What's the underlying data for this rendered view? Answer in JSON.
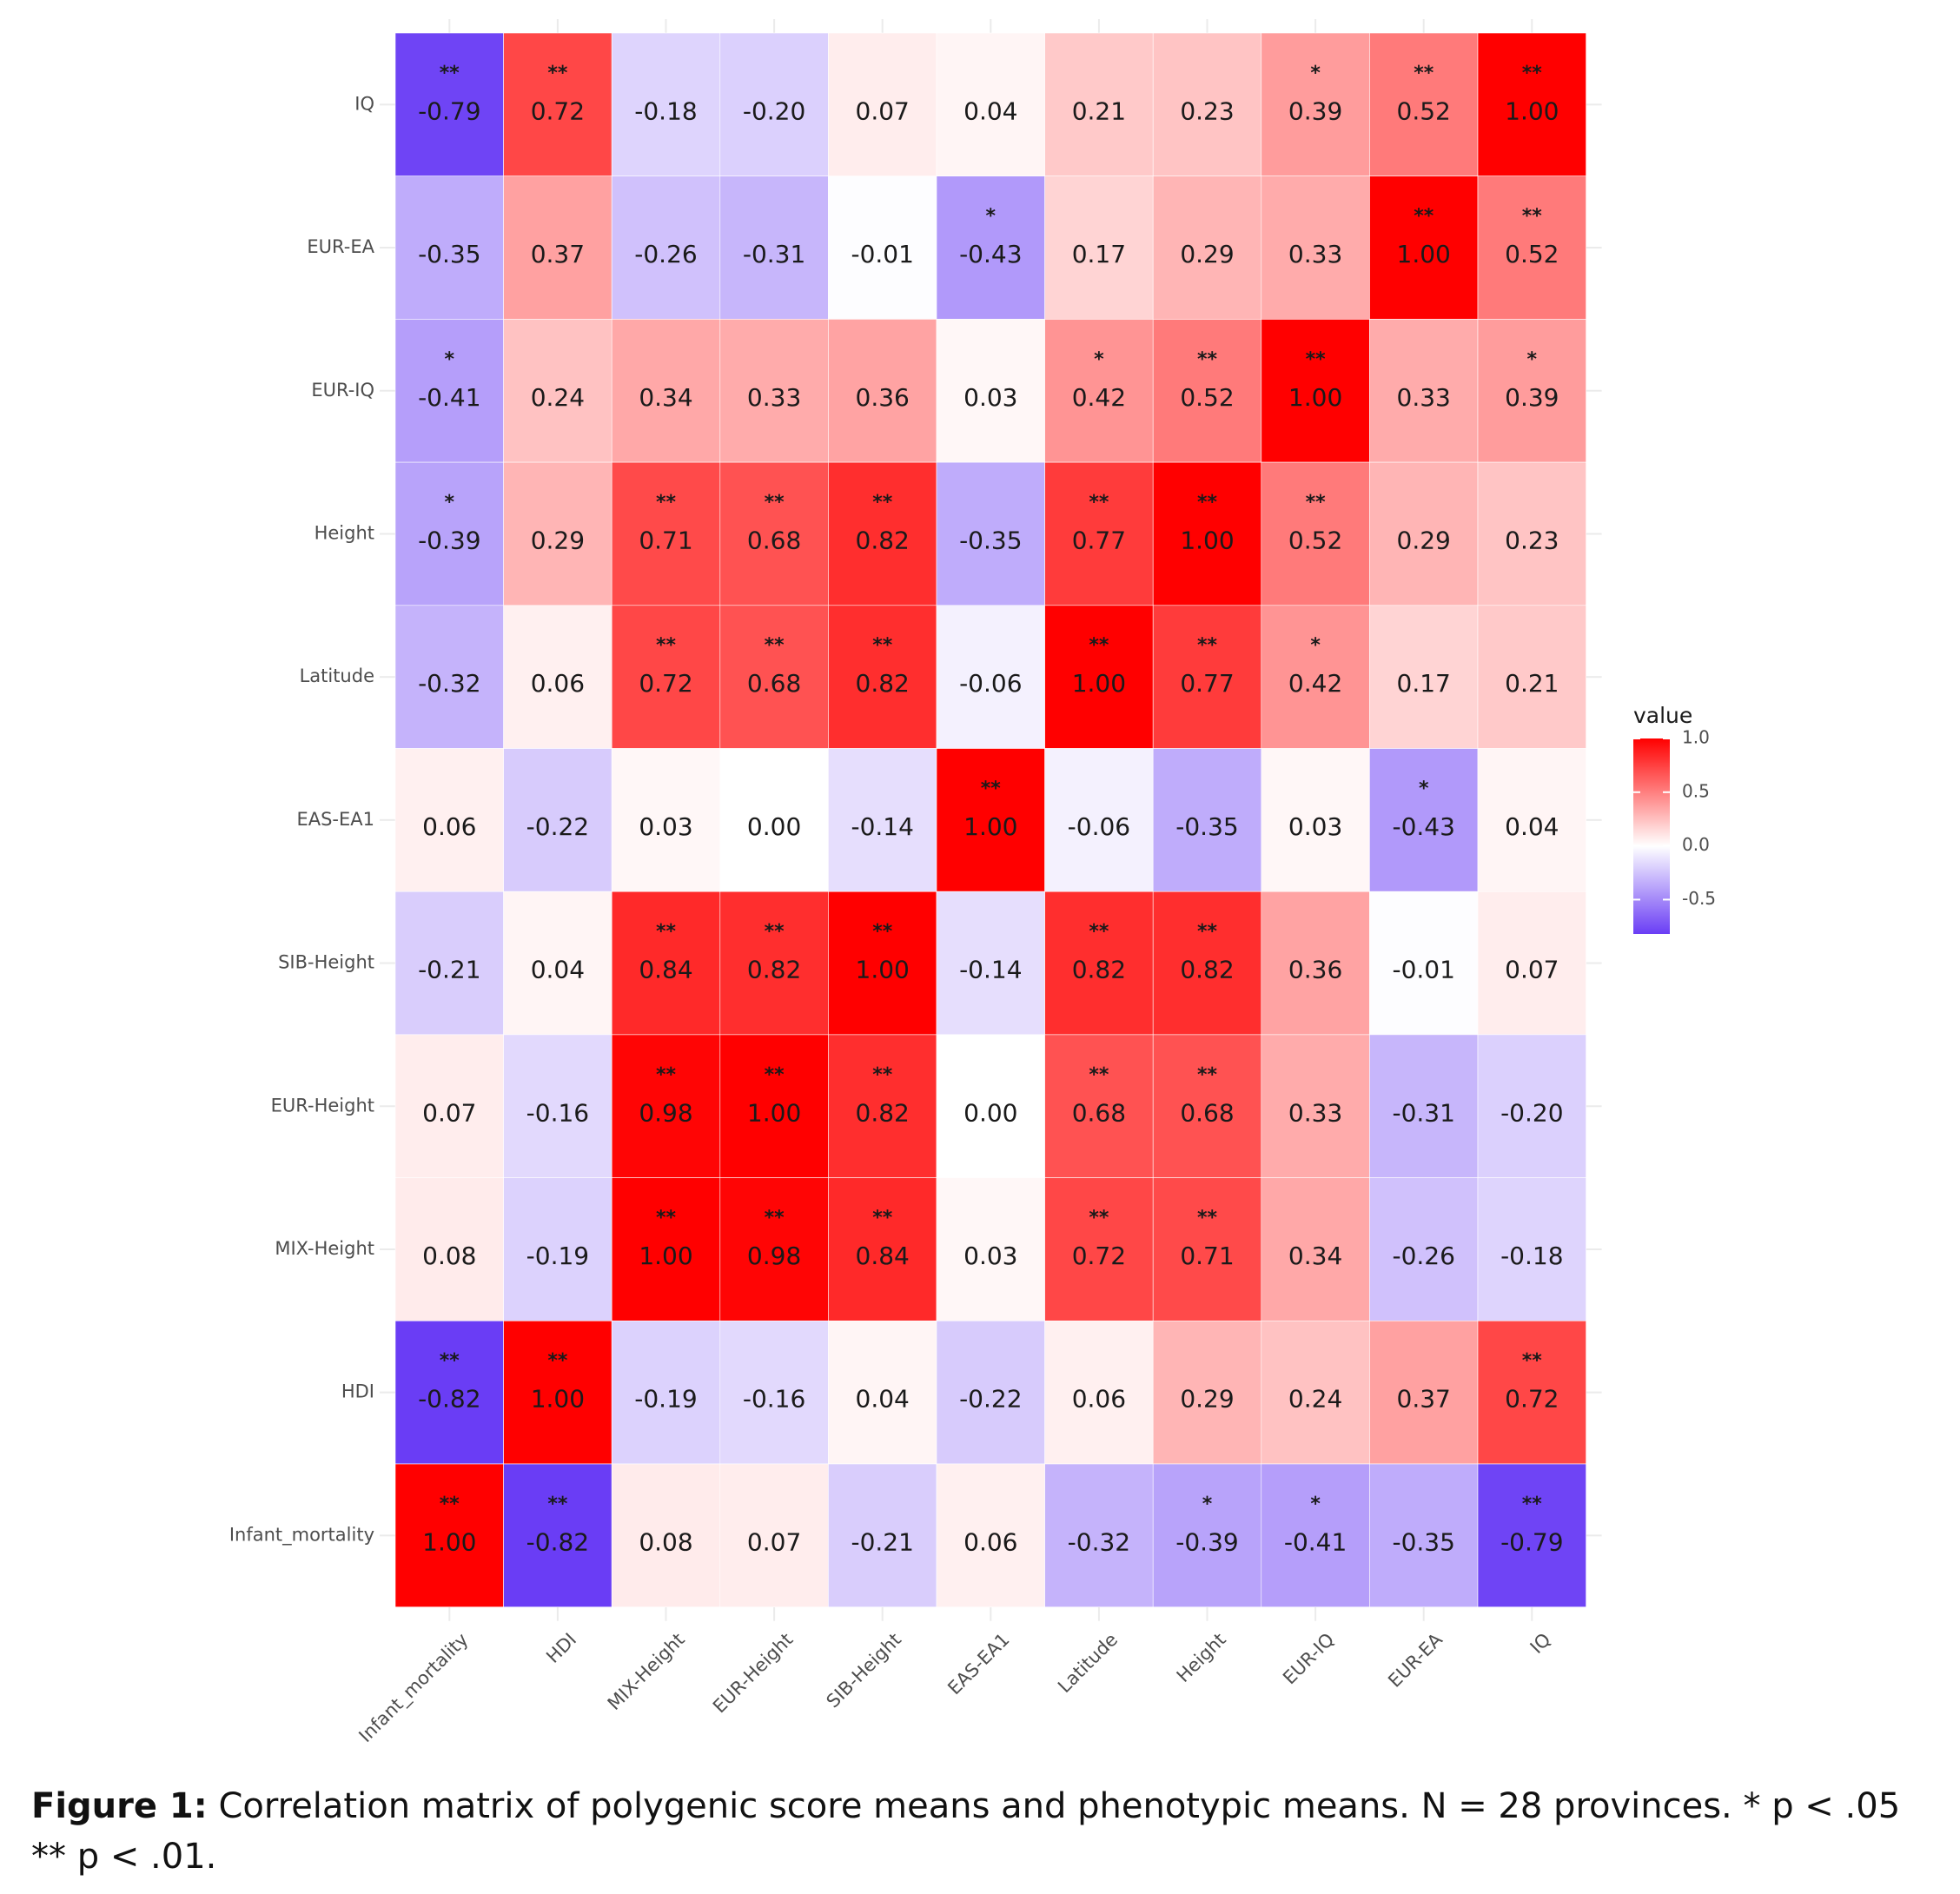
{
  "chart_data": {
    "type": "heatmap",
    "x_categories": [
      "Infant_mortality",
      "HDI",
      "MIX-Height",
      "EUR-Height",
      "SIB-Height",
      "EAS-EA1",
      "Latitude",
      "Height",
      "EUR-IQ",
      "EUR-EA",
      "IQ"
    ],
    "y_categories_top_to_bottom": [
      "IQ",
      "EUR-EA",
      "EUR-IQ",
      "Height",
      "Latitude",
      "EAS-EA1",
      "SIB-Height",
      "EUR-Height",
      "MIX-Height",
      "HDI",
      "Infant_mortality"
    ],
    "values": [
      [
        -0.79,
        0.72,
        -0.18,
        -0.2,
        0.07,
        0.04,
        0.21,
        0.23,
        0.39,
        0.52,
        1.0
      ],
      [
        -0.35,
        0.37,
        -0.26,
        -0.31,
        -0.01,
        -0.43,
        0.17,
        0.29,
        0.33,
        1.0,
        0.52
      ],
      [
        -0.41,
        0.24,
        0.34,
        0.33,
        0.36,
        0.03,
        0.42,
        0.52,
        1.0,
        0.33,
        0.39
      ],
      [
        -0.39,
        0.29,
        0.71,
        0.68,
        0.82,
        -0.35,
        0.77,
        1.0,
        0.52,
        0.29,
        0.23
      ],
      [
        -0.32,
        0.06,
        0.72,
        0.68,
        0.82,
        -0.06,
        1.0,
        0.77,
        0.42,
        0.17,
        0.21
      ],
      [
        0.06,
        -0.22,
        0.03,
        0.0,
        -0.14,
        1.0,
        -0.06,
        -0.35,
        0.03,
        -0.43,
        0.04
      ],
      [
        -0.21,
        0.04,
        0.84,
        0.82,
        1.0,
        -0.14,
        0.82,
        0.82,
        0.36,
        -0.01,
        0.07
      ],
      [
        0.07,
        -0.16,
        0.98,
        1.0,
        0.82,
        0.0,
        0.68,
        0.68,
        0.33,
        -0.31,
        -0.2
      ],
      [
        0.08,
        -0.19,
        1.0,
        0.98,
        0.84,
        0.03,
        0.72,
        0.71,
        0.34,
        -0.26,
        -0.18
      ],
      [
        -0.82,
        1.0,
        -0.19,
        -0.16,
        0.04,
        -0.22,
        0.06,
        0.29,
        0.24,
        0.37,
        0.72
      ],
      [
        1.0,
        -0.82,
        0.08,
        0.07,
        -0.21,
        0.06,
        -0.32,
        -0.39,
        -0.41,
        -0.35,
        -0.79
      ]
    ],
    "significance": [
      [
        "**",
        "**",
        "",
        "",
        "",
        "",
        "",
        "",
        "*",
        "**",
        "**"
      ],
      [
        "",
        "",
        "",
        "",
        "",
        "*",
        "",
        "",
        "",
        "**",
        "**"
      ],
      [
        "*",
        "",
        "",
        "",
        "",
        "",
        "*",
        "**",
        "**",
        "",
        "*"
      ],
      [
        "*",
        "",
        "**",
        "**",
        "**",
        "",
        "**",
        "**",
        "**",
        "",
        ""
      ],
      [
        "",
        "",
        "**",
        "**",
        "**",
        "",
        "**",
        "**",
        "*",
        "",
        ""
      ],
      [
        "",
        "",
        "",
        "",
        "",
        "**",
        "",
        "",
        "",
        "*",
        ""
      ],
      [
        "",
        "",
        "**",
        "**",
        "**",
        "",
        "**",
        "**",
        "",
        "",
        ""
      ],
      [
        "",
        "",
        "**",
        "**",
        "**",
        "",
        "**",
        "**",
        "",
        "",
        ""
      ],
      [
        "",
        "",
        "**",
        "**",
        "**",
        "",
        "**",
        "**",
        "",
        "",
        ""
      ],
      [
        "**",
        "**",
        "",
        "",
        "",
        "",
        "",
        "",
        "",
        "",
        "**"
      ],
      [
        "**",
        "**",
        "",
        "",
        "",
        "",
        "",
        "*",
        "*",
        "",
        "**"
      ]
    ],
    "color_scale": {
      "low": "#6a3df5",
      "mid": "#ffffff",
      "high": "#ff0000",
      "limits": [
        -0.82,
        1.0
      ]
    },
    "legend": {
      "title": "value",
      "ticks": [
        "1.0",
        "0.5",
        "0.0",
        "-0.5"
      ],
      "tick_values": [
        1.0,
        0.5,
        0.0,
        -0.5
      ],
      "position": "right"
    },
    "xlabel": "",
    "ylabel": ""
  },
  "caption": {
    "label": "Figure 1:",
    "text": "Correlation matrix of polygenic score means and phenotypic means. N = 28 provinces. * p < .05 ** p < .01."
  }
}
